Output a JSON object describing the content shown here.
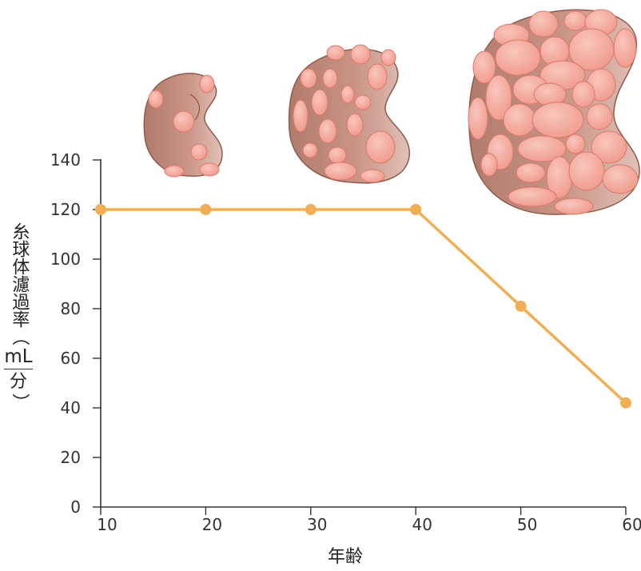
{
  "chart_data": {
    "type": "line",
    "xlabel": "年齢",
    "ylabel": {
      "main": "糸球体濾過率",
      "open_paren": "（",
      "unit_numerator": "mL",
      "unit_denominator": "分",
      "close_paren": "）"
    },
    "xlim": [
      10,
      60
    ],
    "ylim": [
      0,
      140
    ],
    "x_ticks": [
      10,
      20,
      30,
      40,
      50,
      60
    ],
    "y_ticks": [
      0,
      20,
      40,
      60,
      80,
      100,
      120,
      140
    ],
    "series": [
      {
        "x": [
          10,
          20,
          30,
          40,
          50,
          60
        ],
        "values": [
          120,
          120,
          120,
          120,
          81,
          42
        ],
        "color": "#F2AE53"
      }
    ],
    "grid": false,
    "illustrations": [
      "kidney-small-icon",
      "kidney-medium-icon",
      "kidney-large-icon"
    ]
  }
}
